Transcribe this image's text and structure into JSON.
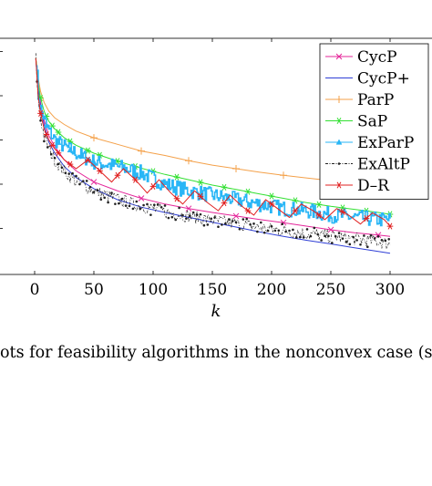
{
  "caption": {
    "text": "ots for feasibility algorithms in the nonconvex case (see S"
  },
  "chart_data": {
    "type": "line",
    "title": "",
    "xlabel": "k",
    "ylabel": "",
    "xlim": [
      -30,
      310
    ],
    "ylim": [
      0,
      5
    ],
    "x_ticks": [
      0,
      50,
      100,
      150,
      200,
      250,
      300
    ],
    "x_tick_labels": [
      "0",
      "50",
      "100",
      "150",
      "200",
      "250",
      "300"
    ],
    "y_ticks": [
      1,
      2,
      3,
      4,
      5
    ],
    "y_tick_labels": [],
    "grid": false,
    "legend": "top-right",
    "series": [
      {
        "name": "CycP",
        "color": "#e4259a",
        "marker": "x",
        "style": "solid",
        "x": [
          1,
          3,
          5,
          8,
          12,
          17,
          25,
          35,
          50,
          70,
          90,
          110,
          130,
          150,
          170,
          190,
          210,
          230,
          250,
          270,
          290,
          300
        ],
        "y": [
          4.85,
          4.2,
          3.85,
          3.45,
          3.1,
          2.85,
          2.55,
          2.3,
          2.05,
          1.85,
          1.68,
          1.55,
          1.45,
          1.36,
          1.28,
          1.2,
          1.13,
          1.05,
          0.97,
          0.9,
          0.85,
          0.82
        ]
      },
      {
        "name": "CycP+",
        "color": "#2f3fd6",
        "marker": "",
        "style": "solid",
        "x": [
          1,
          3,
          5,
          8,
          12,
          17,
          25,
          35,
          50,
          70,
          90,
          110,
          130,
          150,
          170,
          190,
          210,
          230,
          250,
          270,
          290,
          300
        ],
        "y": [
          4.85,
          4.15,
          3.75,
          3.35,
          2.95,
          2.7,
          2.4,
          2.15,
          1.9,
          1.65,
          1.48,
          1.36,
          1.25,
          1.14,
          1.03,
          0.92,
          0.82,
          0.73,
          0.65,
          0.56,
          0.48,
          0.44
        ]
      },
      {
        "name": "ParP",
        "color": "#f4a14a",
        "marker": "+",
        "style": "solid",
        "x": [
          1,
          3,
          5,
          8,
          12,
          17,
          25,
          35,
          50,
          70,
          90,
          110,
          130,
          150,
          170,
          190,
          210,
          230,
          250,
          270,
          290,
          300
        ],
        "y": [
          4.85,
          4.4,
          4.1,
          3.85,
          3.65,
          3.5,
          3.35,
          3.2,
          3.05,
          2.9,
          2.75,
          2.65,
          2.53,
          2.43,
          2.35,
          2.27,
          2.2,
          2.14,
          2.08,
          2.02,
          1.97,
          1.95
        ]
      },
      {
        "name": "SaP",
        "color": "#33e033",
        "marker": "*",
        "style": "solid",
        "x": [
          1,
          3,
          5,
          8,
          12,
          17,
          25,
          35,
          50,
          70,
          90,
          110,
          130,
          150,
          170,
          190,
          210,
          230,
          250,
          270,
          290,
          300
        ],
        "y": [
          4.85,
          4.3,
          3.95,
          3.65,
          3.42,
          3.25,
          3.05,
          2.88,
          2.7,
          2.52,
          2.36,
          2.22,
          2.1,
          1.98,
          1.88,
          1.78,
          1.68,
          1.58,
          1.5,
          1.43,
          1.36,
          1.32
        ]
      },
      {
        "name": "ExParP",
        "color": "#29b6f6",
        "marker": "triangle",
        "style": "step",
        "x": [
          1,
          3,
          5,
          8,
          12,
          17,
          25,
          35,
          50,
          70,
          90,
          110,
          130,
          150,
          170,
          190,
          210,
          230,
          250,
          270,
          290,
          300
        ],
        "y": [
          4.85,
          4.0,
          3.7,
          3.45,
          3.2,
          3.0,
          2.85,
          2.7,
          2.5,
          2.4,
          2.25,
          2.0,
          1.85,
          1.75,
          1.65,
          1.55,
          1.45,
          1.4,
          1.3,
          1.25,
          1.2,
          1.2
        ]
      },
      {
        "name": "ExAltP",
        "color": "#222222",
        "marker": "dot",
        "style": "dashdot",
        "x": [
          1,
          3,
          5,
          8,
          12,
          17,
          25,
          35,
          50,
          70,
          90,
          110,
          130,
          150,
          170,
          190,
          210,
          230,
          250,
          270,
          290,
          300
        ],
        "y": [
          4.85,
          3.9,
          3.5,
          3.1,
          2.8,
          2.55,
          2.3,
          2.05,
          1.85,
          1.65,
          1.5,
          1.38,
          1.28,
          1.18,
          1.1,
          1.02,
          0.95,
          0.88,
          0.82,
          0.76,
          0.7,
          0.65
        ]
      },
      {
        "name": "D–R",
        "color": "#e02020",
        "marker": "*",
        "style": "solid",
        "x": [
          1,
          3,
          5,
          8,
          12,
          17,
          25,
          35,
          45,
          55,
          65,
          75,
          85,
          95,
          105,
          115,
          125,
          135,
          145,
          155,
          165,
          175,
          185,
          195,
          205,
          215,
          225,
          235,
          245,
          255,
          265,
          275,
          285,
          295,
          300
        ],
        "y": [
          4.85,
          4.0,
          3.6,
          3.25,
          3.0,
          2.8,
          2.55,
          2.35,
          2.55,
          2.3,
          2.05,
          2.35,
          2.1,
          1.8,
          2.1,
          1.8,
          1.55,
          1.85,
          1.6,
          1.4,
          1.75,
          1.5,
          1.3,
          1.65,
          1.45,
          1.25,
          1.55,
          1.4,
          1.2,
          1.45,
          1.3,
          1.1,
          1.35,
          1.2,
          1.05
        ]
      }
    ]
  }
}
